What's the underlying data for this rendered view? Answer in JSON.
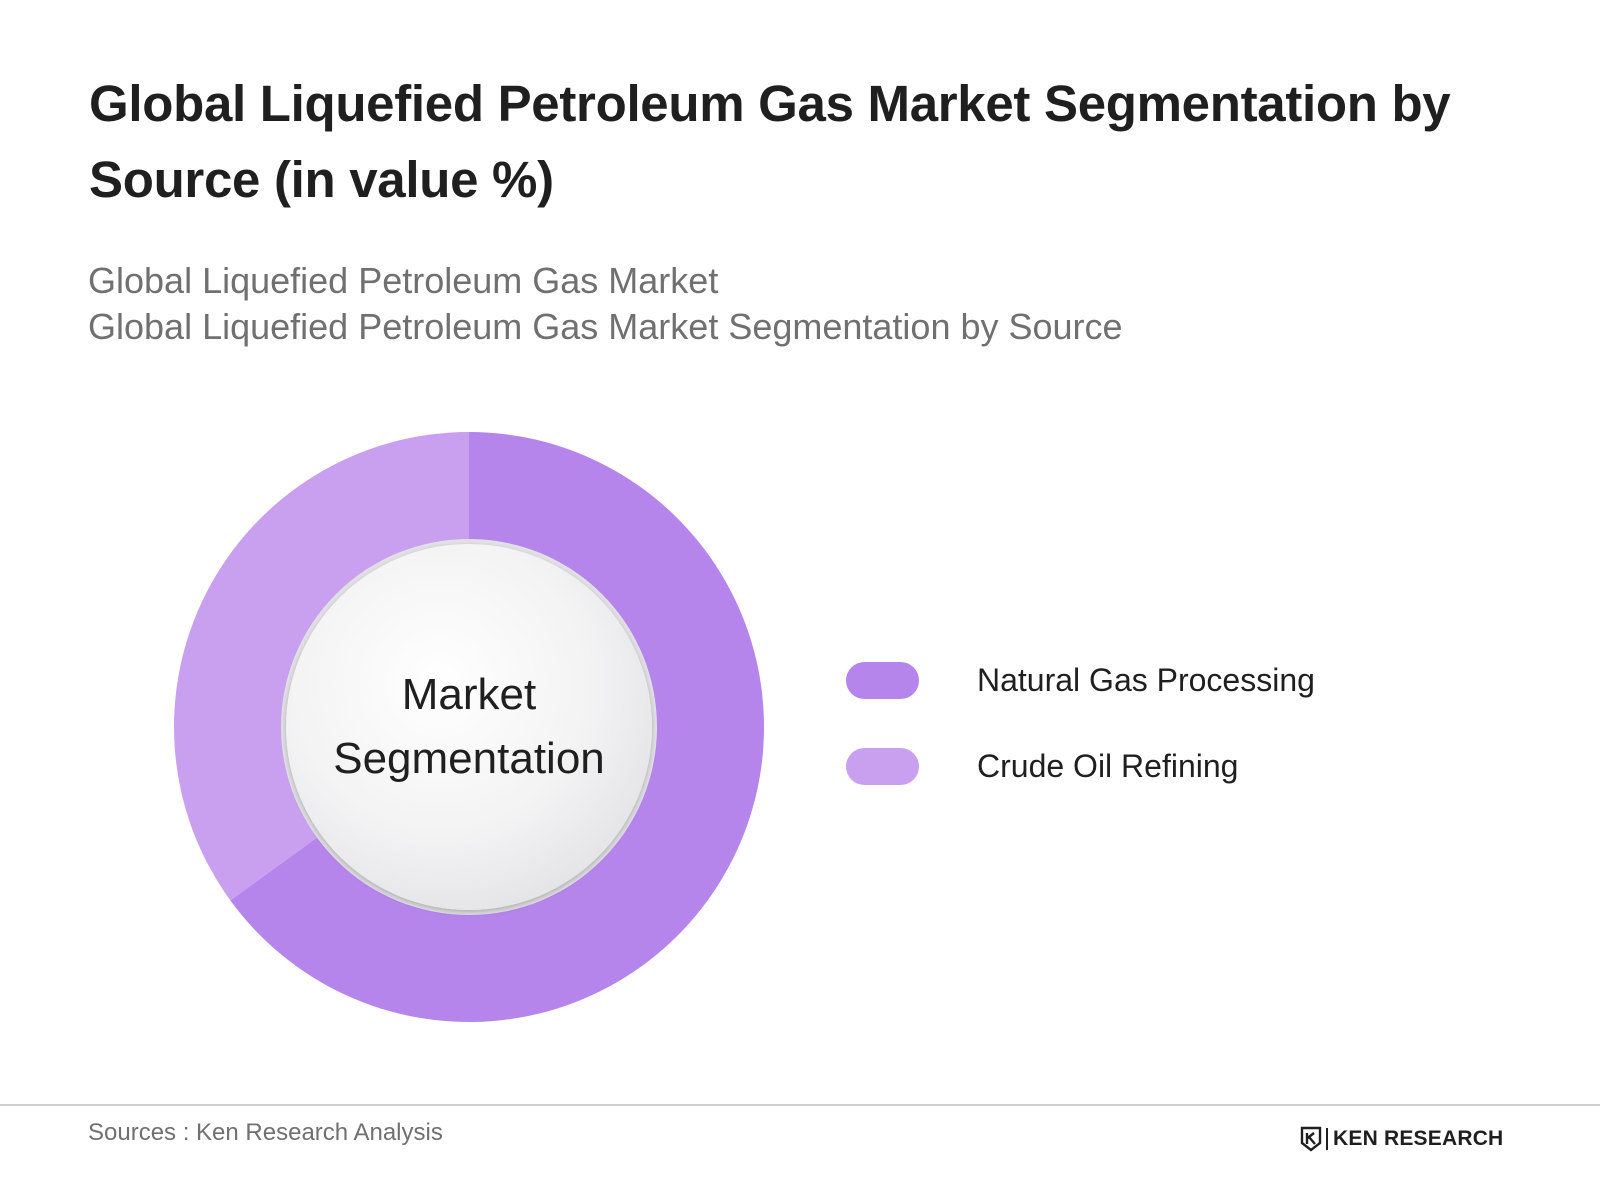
{
  "title": "Global Liquefied Petroleum Gas Market Segmentation by Source (in value %)",
  "subtitle_lines": [
    "Global Liquefied Petroleum Gas Market",
    "Global Liquefied Petroleum Gas Market Segmentation by Source"
  ],
  "center_label": {
    "line1": "Market",
    "line2": "Segmentation"
  },
  "chart_data": {
    "type": "pie",
    "variant": "donut",
    "categories": [
      "Natural Gas Processing",
      "Crude Oil Refining"
    ],
    "values": [
      65,
      35
    ],
    "colors": [
      "#b585ec",
      "#c8a0ef"
    ],
    "legend_position": "right"
  },
  "footer": {
    "sources": "Sources : Ken Research Analysis",
    "logo_text": "KEN RESEARCH"
  },
  "colors": {
    "title": "#1f1f1f",
    "subtitle": "#707070",
    "rule": "#cfcfcf"
  }
}
